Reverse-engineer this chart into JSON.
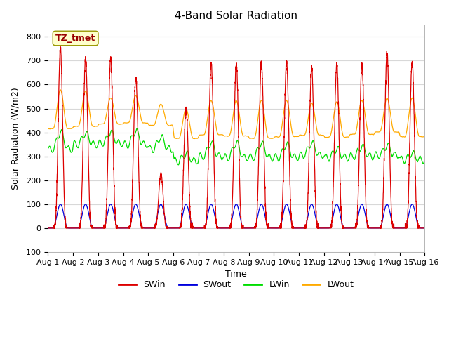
{
  "title": "4-Band Solar Radiation",
  "xlabel": "Time",
  "ylabel": "Solar Radiation (W/m2)",
  "ylim": [
    -100,
    850
  ],
  "xlim": [
    0,
    15
  ],
  "xtick_labels": [
    "Aug 1",
    "Aug 2",
    "Aug 3",
    "Aug 4",
    "Aug 5",
    "Aug 6",
    "Aug 7",
    "Aug 8",
    "Aug 9",
    "Aug 10",
    "Aug 11",
    "Aug 12",
    "Aug 13",
    "Aug 14",
    "Aug 15",
    "Aug 16"
  ],
  "xtick_positions": [
    0,
    1,
    2,
    3,
    4,
    5,
    6,
    7,
    8,
    9,
    10,
    11,
    12,
    13,
    14,
    15
  ],
  "ytick_values": [
    -100,
    0,
    100,
    200,
    300,
    400,
    500,
    600,
    700,
    800
  ],
  "grid_color": "#d8d8d8",
  "bg_color": "#e8e8e8",
  "plot_bg_color": "#ffffff",
  "legend_entries": [
    "SWin",
    "SWout",
    "LWin",
    "LWout"
  ],
  "line_colors": {
    "SWin": "#dd0000",
    "SWout": "#0000dd",
    "LWin": "#00dd00",
    "LWout": "#ffaa00"
  },
  "annotation_text": "TZ_tmet",
  "annotation_bbox_facecolor": "#ffffcc",
  "annotation_bbox_edgecolor": "#999900",
  "annotation_color": "#990000",
  "annotation_fontsize": 9,
  "annotation_fontweight": "bold",
  "title_fontsize": 11,
  "axis_label_fontsize": 9,
  "tick_fontsize": 8
}
